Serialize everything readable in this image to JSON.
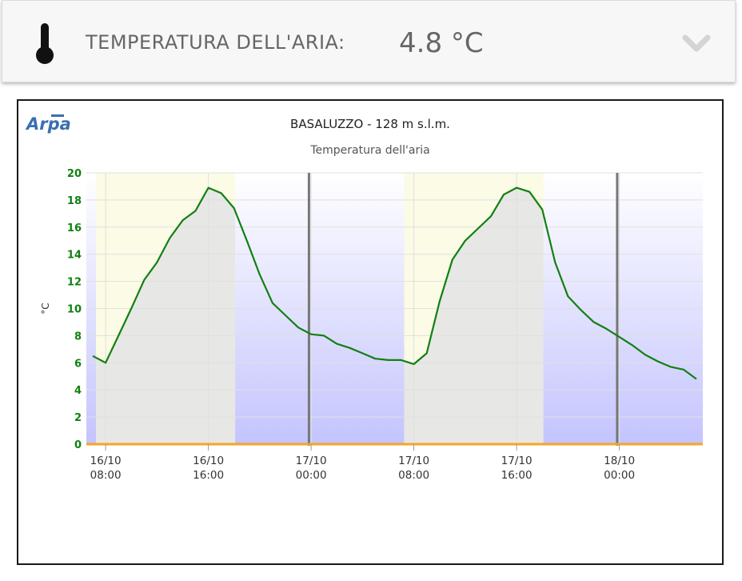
{
  "header": {
    "label": "TEMPERATURA DELL'ARIA:",
    "value": "4.8 °C",
    "icon": "thermometer-icon",
    "toggle_icon": "chevron-down-icon"
  },
  "logo": {
    "text": "Arpa"
  },
  "colors": {
    "line": "#118011",
    "axis_labels": "#118011",
    "zero_line": "#f5a623",
    "day_band": "#fbfbe6",
    "night_top": "#ffffff",
    "night_bottom": "#c4c4ff",
    "midnight_line": "#777777"
  },
  "chart_data": {
    "type": "line",
    "title": "BASALUZZO - 128 m s.l.m.",
    "subtitle": "Temperatura dell'aria",
    "ylabel": "°C",
    "ylim": [
      0,
      20
    ],
    "yticks": [
      0,
      2,
      4,
      6,
      8,
      10,
      12,
      14,
      16,
      18,
      20
    ],
    "xlim": [
      "2023-10-16T06:30",
      "2023-10-18T06:30"
    ],
    "xticks": [
      {
        "t": "2023-10-16T08:00",
        "label1": "16/10",
        "label2": "08:00"
      },
      {
        "t": "2023-10-16T16:00",
        "label1": "16/10",
        "label2": "16:00"
      },
      {
        "t": "2023-10-17T00:00",
        "label1": "17/10",
        "label2": "00:00"
      },
      {
        "t": "2023-10-17T08:00",
        "label1": "17/10",
        "label2": "08:00"
      },
      {
        "t": "2023-10-17T16:00",
        "label1": "17/10",
        "label2": "16:00"
      },
      {
        "t": "2023-10-18T00:00",
        "label1": "18/10",
        "label2": "00:00"
      }
    ],
    "daylight_bands": [
      [
        "2023-10-16T07:15",
        "2023-10-16T18:05"
      ],
      [
        "2023-10-17T07:15",
        "2023-10-17T18:05"
      ]
    ],
    "midnight_markers": [
      "2023-10-16T23:50",
      "2023-10-17T23:50"
    ],
    "grid": true,
    "legend": "none",
    "series": [
      {
        "x": [
          "2023-10-16T07:00",
          "2023-10-16T08:00",
          "2023-10-16T09:00",
          "2023-10-16T10:00",
          "2023-10-16T11:00",
          "2023-10-16T12:00",
          "2023-10-16T13:00",
          "2023-10-16T14:00",
          "2023-10-16T15:00",
          "2023-10-16T16:00",
          "2023-10-16T17:00",
          "2023-10-16T18:00",
          "2023-10-16T19:00",
          "2023-10-16T20:00",
          "2023-10-16T21:00",
          "2023-10-16T22:00",
          "2023-10-16T23:00",
          "2023-10-17T00:00",
          "2023-10-17T01:00",
          "2023-10-17T02:00",
          "2023-10-17T03:00",
          "2023-10-17T04:00",
          "2023-10-17T05:00",
          "2023-10-17T06:00",
          "2023-10-17T07:00",
          "2023-10-17T08:00",
          "2023-10-17T09:00",
          "2023-10-17T10:00",
          "2023-10-17T11:00",
          "2023-10-17T12:00",
          "2023-10-17T13:00",
          "2023-10-17T14:00",
          "2023-10-17T15:00",
          "2023-10-17T16:00",
          "2023-10-17T17:00",
          "2023-10-17T18:00",
          "2023-10-17T19:00",
          "2023-10-17T20:00",
          "2023-10-17T21:00",
          "2023-10-17T22:00",
          "2023-10-17T23:00",
          "2023-10-18T00:00",
          "2023-10-18T01:00",
          "2023-10-18T02:00",
          "2023-10-18T03:00",
          "2023-10-18T04:00",
          "2023-10-18T05:00",
          "2023-10-18T06:00"
        ],
        "values": [
          6.5,
          6.0,
          8.0,
          10.0,
          12.1,
          13.4,
          15.2,
          16.5,
          17.2,
          18.9,
          18.5,
          17.4,
          15.0,
          12.5,
          10.4,
          9.5,
          8.6,
          8.1,
          8.0,
          7.4,
          7.1,
          6.7,
          6.3,
          6.2,
          6.2,
          5.9,
          6.7,
          10.5,
          13.6,
          15.0,
          15.9,
          16.8,
          18.4,
          18.9,
          18.6,
          17.3,
          13.4,
          10.9,
          9.9,
          9.0,
          8.5,
          7.9,
          7.3,
          6.6,
          6.1,
          5.7,
          5.5,
          4.8
        ]
      }
    ]
  }
}
